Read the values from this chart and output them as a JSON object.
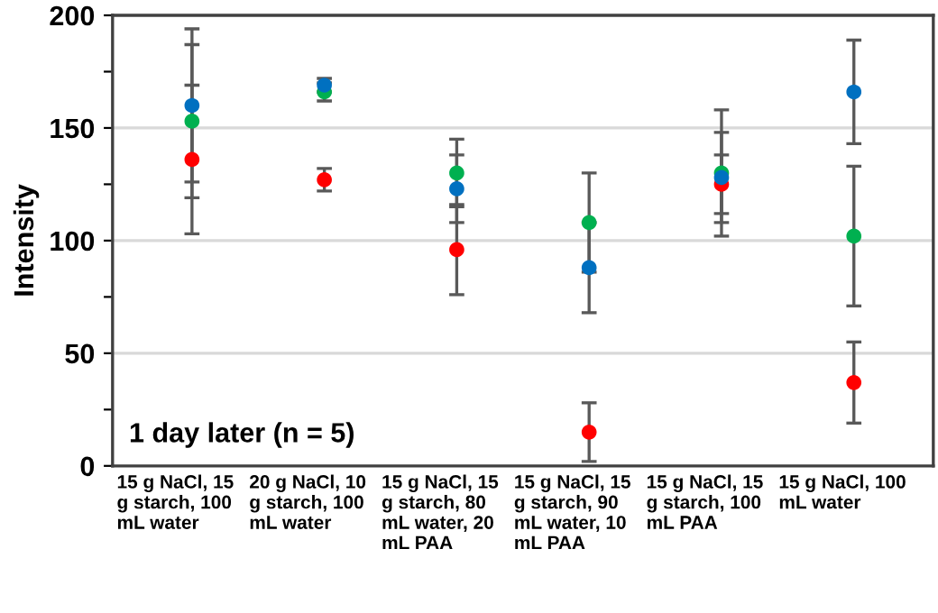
{
  "chart_data": {
    "type": "scatter",
    "ylabel": "Intensity",
    "categories": [
      "15 g NaCl, 15 g starch, 100 mL water",
      "20 g NaCl, 10 g starch, 100 mL water",
      "15 g NaCl, 15 g starch, 80 mL water, 20 mL PAA",
      "15 g NaCl, 15 g starch, 90 mL water, 10 mL PAA",
      "15 g NaCl, 15 g starch, 100 mL PAA",
      "15 g NaCl, 100 mL water"
    ],
    "series": [
      {
        "color": "#ff0000",
        "values": [
          136,
          127,
          96,
          15,
          125,
          37
        ],
        "errors": [
          33,
          5,
          20,
          13,
          13,
          18
        ]
      },
      {
        "color": "#00b050",
        "values": [
          153,
          166,
          130,
          108,
          130,
          102
        ],
        "errors": [
          34,
          4,
          15,
          22,
          28,
          31
        ]
      },
      {
        "color": "#0070c0",
        "values": [
          160,
          169,
          123,
          88,
          128,
          166
        ],
        "errors": [
          34,
          3,
          15,
          20,
          20,
          23
        ]
      }
    ],
    "ylim": [
      0,
      200
    ],
    "yticks": [
      0,
      {
        "value": 25,
        "label": null
      },
      50,
      {
        "value": 75,
        "label": null
      },
      100,
      {
        "value": 125,
        "label": null
      },
      150,
      {
        "value": 175,
        "label": null
      },
      200
    ],
    "grid": "y",
    "marker": "circle",
    "annotations": [
      "1 day later (n = 5)"
    ]
  }
}
